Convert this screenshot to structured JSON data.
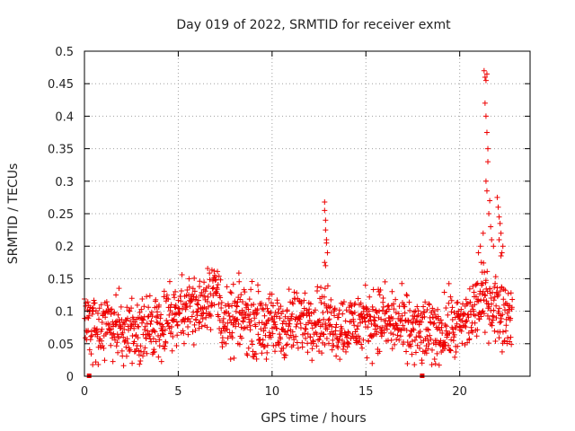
{
  "chart_data": {
    "type": "scatter",
    "title": "Day 019 of 2022, SRMTID for receiver exmt",
    "xlabel": "GPS time / hours",
    "ylabel": "SRMTID / TECUs",
    "xlim": [
      0,
      23.75
    ],
    "ylim": [
      0,
      0.5
    ],
    "xticks": [
      0,
      5,
      10,
      15,
      20
    ],
    "yticks": [
      0,
      0.05,
      0.1,
      0.15,
      0.2,
      0.25,
      0.3,
      0.35,
      0.4,
      0.45,
      0.5
    ],
    "xtick_labels": [
      "0",
      "5",
      "10",
      "15",
      "20"
    ],
    "ytick_labels": [
      "0",
      "0.05",
      "0.1",
      "0.15",
      "0.2",
      "0.25",
      "0.3",
      "0.35",
      "0.4",
      "0.45",
      "0.5"
    ],
    "grid": true,
    "marker": "+",
    "color": "#ee0000",
    "series": [
      {
        "name": "SRMTID",
        "baseline": [
          [
            0.0,
            0.085
          ],
          [
            0.5,
            0.08
          ],
          [
            1.0,
            0.075
          ],
          [
            1.5,
            0.075
          ],
          [
            2.0,
            0.07
          ],
          [
            2.5,
            0.07
          ],
          [
            3.0,
            0.055
          ],
          [
            3.5,
            0.075
          ],
          [
            4.0,
            0.085
          ],
          [
            4.5,
            0.09
          ],
          [
            5.0,
            0.1
          ],
          [
            5.5,
            0.11
          ],
          [
            6.0,
            0.1
          ],
          [
            6.5,
            0.125
          ],
          [
            7.0,
            0.135
          ],
          [
            7.5,
            0.075
          ],
          [
            8.0,
            0.085
          ],
          [
            8.5,
            0.095
          ],
          [
            9.0,
            0.085
          ],
          [
            9.5,
            0.08
          ],
          [
            10.0,
            0.075
          ],
          [
            10.5,
            0.075
          ],
          [
            11.0,
            0.08
          ],
          [
            11.5,
            0.085
          ],
          [
            12.0,
            0.09
          ],
          [
            12.5,
            0.09
          ],
          [
            13.0,
            0.085
          ],
          [
            13.5,
            0.08
          ],
          [
            14.0,
            0.075
          ],
          [
            14.5,
            0.08
          ],
          [
            15.0,
            0.085
          ],
          [
            15.5,
            0.09
          ],
          [
            16.0,
            0.085
          ],
          [
            16.5,
            0.08
          ],
          [
            17.0,
            0.075
          ],
          [
            17.5,
            0.07
          ],
          [
            18.0,
            0.065
          ],
          [
            18.5,
            0.065
          ],
          [
            19.0,
            0.07
          ],
          [
            19.5,
            0.075
          ],
          [
            20.0,
            0.075
          ],
          [
            20.5,
            0.09
          ],
          [
            21.0,
            0.11
          ],
          [
            21.5,
            0.12
          ],
          [
            22.0,
            0.105
          ],
          [
            22.5,
            0.095
          ],
          [
            22.8,
            0.1
          ]
        ],
        "spikes": [
          [
            12.8,
            0.268
          ],
          [
            12.8,
            0.255
          ],
          [
            12.85,
            0.24
          ],
          [
            12.85,
            0.225
          ],
          [
            12.9,
            0.21
          ],
          [
            12.9,
            0.205
          ],
          [
            12.95,
            0.19
          ],
          [
            12.8,
            0.175
          ],
          [
            12.85,
            0.17
          ],
          [
            21.0,
            0.19
          ],
          [
            21.1,
            0.2
          ],
          [
            21.15,
            0.175
          ],
          [
            21.2,
            0.16
          ],
          [
            21.25,
            0.22
          ],
          [
            21.3,
            0.47
          ],
          [
            21.35,
            0.46
          ],
          [
            21.4,
            0.455
          ],
          [
            21.45,
            0.465
          ],
          [
            21.35,
            0.42
          ],
          [
            21.4,
            0.4
          ],
          [
            21.45,
            0.375
          ],
          [
            21.5,
            0.35
          ],
          [
            21.5,
            0.33
          ],
          [
            21.4,
            0.3
          ],
          [
            21.45,
            0.285
          ],
          [
            21.6,
            0.27
          ],
          [
            21.55,
            0.25
          ],
          [
            21.65,
            0.23
          ],
          [
            21.7,
            0.21
          ],
          [
            21.8,
            0.2
          ],
          [
            22.0,
            0.275
          ],
          [
            22.05,
            0.26
          ],
          [
            22.1,
            0.245
          ],
          [
            22.15,
            0.235
          ],
          [
            22.2,
            0.22
          ],
          [
            22.1,
            0.21
          ],
          [
            22.25,
            0.19
          ],
          [
            22.3,
            0.2
          ],
          [
            22.2,
            0.185
          ]
        ],
        "point_count": 1400
      }
    ],
    "gap_markers_x": [
      0.25,
      18.0
    ]
  }
}
